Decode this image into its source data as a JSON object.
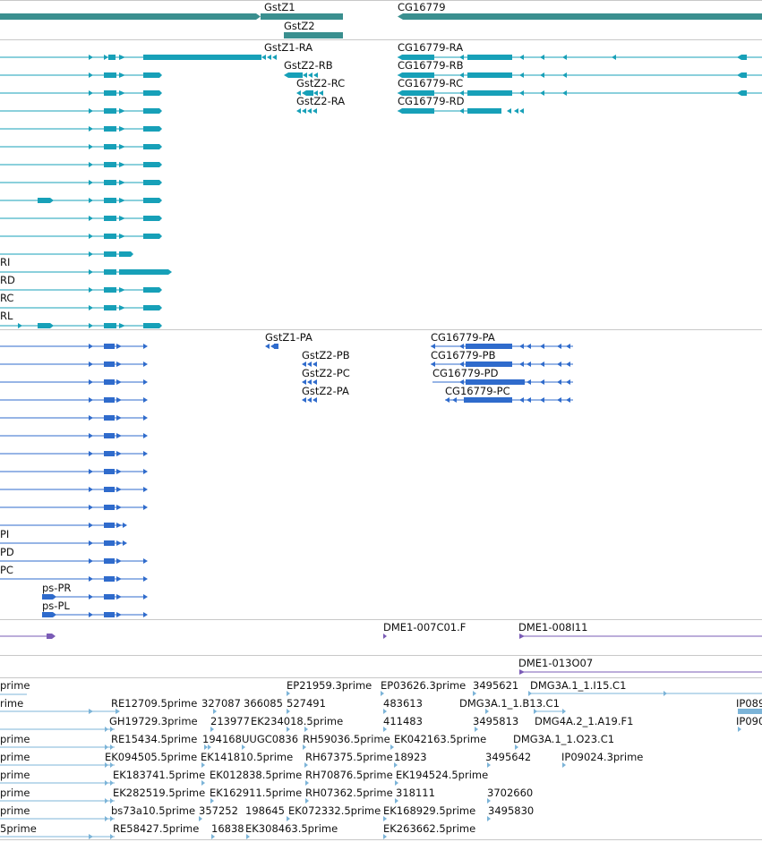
{
  "colors": {
    "gene": "#3a8f8f",
    "mrna": "#17a0b8",
    "protein": "#2f6bcc",
    "clone": "#7a5bb6",
    "est": "#7cb4d8",
    "border": "#c8c8c8"
  },
  "tracks": {
    "genes": {
      "features": [
        {
          "label": "GstZ1",
          "has_label": true
        },
        {
          "label": "CG16779",
          "has_label": true
        },
        {
          "label": "GstZ2",
          "has_label": true
        }
      ]
    },
    "transcripts": {
      "features": [
        {
          "label": "GstZ1-RA",
          "has_label": true
        },
        {
          "label": "CG16779-RA",
          "has_label": true
        },
        {
          "label": "GstZ2-RB",
          "has_label": true
        },
        {
          "label": "CG16779-RB",
          "has_label": true
        },
        {
          "label": "GstZ2-RC",
          "has_label": true
        },
        {
          "label": "CG16779-RC",
          "has_label": true
        },
        {
          "label": "GstZ2-RA",
          "has_label": true
        },
        {
          "label": "CG16779-RD",
          "has_label": true
        },
        {
          "label": "RI",
          "has_label": true
        },
        {
          "label": "RD",
          "has_label": true
        },
        {
          "label": "RC",
          "has_label": true
        },
        {
          "label": "RL",
          "has_label": true
        }
      ]
    },
    "proteins": {
      "features": [
        {
          "label": "GstZ1-PA",
          "has_label": true
        },
        {
          "label": "CG16779-PA",
          "has_label": true
        },
        {
          "label": "GstZ2-PB",
          "has_label": true
        },
        {
          "label": "CG16779-PB",
          "has_label": true
        },
        {
          "label": "GstZ2-PC",
          "has_label": true
        },
        {
          "label": "CG16779-PD",
          "has_label": true
        },
        {
          "label": "GstZ2-PA",
          "has_label": true
        },
        {
          "label": "CG16779-PC",
          "has_label": true
        },
        {
          "label": "PI",
          "has_label": true
        },
        {
          "label": "PD",
          "has_label": true
        },
        {
          "label": "PC",
          "has_label": true
        },
        {
          "label": "ps-PR",
          "has_label": true
        },
        {
          "label": "ps-PL",
          "has_label": true
        }
      ]
    },
    "clones": {
      "features": [
        {
          "label": "DME1-007C01.F"
        },
        {
          "label": "DME1-008I11"
        },
        {
          "label": "DME1-013O07"
        }
      ]
    },
    "ests": {
      "labels": [
        "prime",
        "EP21959.3prime",
        "EP03626.3prime",
        "3495621",
        "DMG3A.1_1.I15.C1",
        "rime",
        "RE12709.5prime",
        "327087",
        "366085",
        "527491",
        "483613",
        "DMG3A.1_1.B13.C1",
        "IP089",
        "GH19729.3prime",
        "213977",
        "EK234018.5prime",
        "411483",
        "3495813",
        "DMG4A.2_1.A19.F1",
        "IP090",
        "prime",
        "RE15434.5prime",
        "194168",
        "UUGC0836",
        "RH59036.5prime",
        "EK042163.5prime",
        "DMG3A.1_1.O23.C1",
        "prime",
        "EK094505.5prime",
        "EK141810.5prime",
        "RH67375.5prime",
        "18923",
        "3495642",
        "IP09024.3prime",
        "prime",
        "EK183741.5prime",
        "EK012838.5prime",
        "RH70876.5prime",
        "EK194524.5prime",
        "prime",
        "EK282519.5prime",
        "EK162911.5prime",
        "RH07362.5prime",
        "318111",
        "3702660",
        "prime",
        "bs73a10.5prime",
        "357252",
        "198645",
        "EK072332.5prime",
        "EK168929.5prime",
        "3495830",
        "5prime",
        "RE58427.5prime",
        "16838",
        "EK308463.5prime",
        "EK263662.5prime"
      ]
    }
  }
}
